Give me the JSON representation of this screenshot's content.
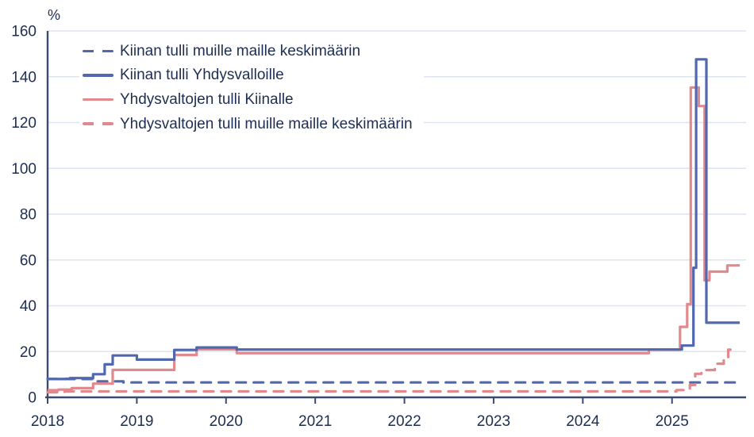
{
  "chart_data": {
    "type": "line",
    "unit_label": "%",
    "title": "",
    "x_domain": {
      "min": 2018,
      "max": 2025.83
    },
    "y_axis": {
      "min": 0,
      "max": 160,
      "step": 20
    },
    "y_tick_labels": [
      "0",
      "20",
      "40",
      "60",
      "80",
      "100",
      "120",
      "140",
      "160"
    ],
    "x_tick_labels": [
      "2018",
      "2019",
      "2020",
      "2021",
      "2022",
      "2023",
      "2024",
      "2025"
    ],
    "x_ticks": [
      2018,
      2019,
      2020,
      2021,
      2022,
      2023,
      2024,
      2025
    ],
    "grid": "horizontal-only",
    "legend_position": "top-left",
    "colors": {
      "china_blue": "#5168ae",
      "us_red": "#e18a8e",
      "text": "#1e2e52",
      "gridline": "#dee4f1",
      "axis": "#3c4a6e",
      "background": "#ffffff"
    },
    "draw_order": [
      0,
      3,
      2,
      1
    ],
    "series": [
      {
        "id": "china-tariff-row-avg",
        "name": "Kiinan tulli muille maille keskimäärin",
        "color": "#5168ae",
        "dashed": true,
        "end": 2025.78,
        "points": [
          [
            2018.0,
            8.0
          ],
          [
            2018.5,
            7.0
          ],
          [
            2018.85,
            6.5
          ]
        ]
      },
      {
        "id": "china-tariff-us",
        "name": "Kiinan tulli Yhdysvalloille",
        "color": "#5168ae",
        "dashed": false,
        "end": 2025.76,
        "points": [
          [
            2018.0,
            8.0
          ],
          [
            2018.25,
            8.4
          ],
          [
            2018.51,
            10.1
          ],
          [
            2018.64,
            14.4
          ],
          [
            2018.73,
            18.3
          ],
          [
            2019.0,
            16.5
          ],
          [
            2019.42,
            20.7
          ],
          [
            2019.67,
            21.8
          ],
          [
            2020.12,
            20.9
          ],
          [
            2025.11,
            22.6
          ],
          [
            2025.24,
            56.6
          ],
          [
            2025.27,
            147.6
          ],
          [
            2025.385,
            32.6
          ]
        ]
      },
      {
        "id": "us-tariff-china",
        "name": "Yhdysvaltojen tulli Kiinalle",
        "color": "#e18a8e",
        "dashed": false,
        "end": 2025.76,
        "points": [
          [
            2018.0,
            3.1
          ],
          [
            2018.12,
            3.4
          ],
          [
            2018.27,
            4.0
          ],
          [
            2018.51,
            6.0
          ],
          [
            2018.73,
            12.0
          ],
          [
            2019.42,
            18.5
          ],
          [
            2019.67,
            21.0
          ],
          [
            2020.12,
            19.3
          ],
          [
            2024.74,
            20.8
          ],
          [
            2025.09,
            30.8
          ],
          [
            2025.17,
            40.7
          ],
          [
            2025.21,
            135.3
          ],
          [
            2025.3,
            127.2
          ],
          [
            2025.365,
            51.1
          ],
          [
            2025.42,
            54.9
          ],
          [
            2025.62,
            57.6
          ]
        ]
      },
      {
        "id": "us-tariff-row-avg",
        "name": "Yhdysvaltojen tulli muille maille keskimäärin",
        "color": "#e18a8e",
        "dashed": true,
        "end": 2025.7,
        "points": [
          [
            2018.0,
            2.2
          ],
          [
            2018.19,
            2.6
          ],
          [
            2025.05,
            3.2
          ],
          [
            2025.2,
            5.4
          ],
          [
            2025.26,
            10.3
          ],
          [
            2025.33,
            11.9
          ],
          [
            2025.48,
            14.7
          ],
          [
            2025.58,
            16.8
          ],
          [
            2025.63,
            20.8
          ]
        ]
      }
    ]
  }
}
